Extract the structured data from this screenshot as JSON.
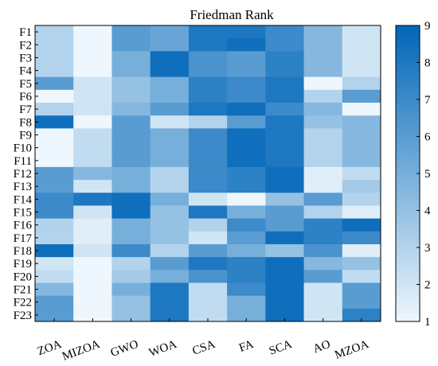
{
  "chart_data": {
    "type": "heatmap",
    "title": "Friedman Rank",
    "xlabel": "",
    "ylabel": "",
    "columns": [
      "ZOA",
      "MIZOA",
      "GWO",
      "WOA",
      "CSA",
      "FA",
      "SCA",
      "AO",
      "MZOA"
    ],
    "rows": [
      "F1",
      "F2",
      "F3",
      "F4",
      "F5",
      "F6",
      "F7",
      "F8",
      "F9",
      "F10",
      "F11",
      "F12",
      "F13",
      "F14",
      "F15",
      "F16",
      "F17",
      "F18",
      "F19",
      "F20",
      "F21",
      "F22",
      "F23"
    ],
    "values": [
      [
        3,
        1,
        6,
        5.5,
        8,
        8,
        7,
        4.5,
        2
      ],
      [
        3,
        1,
        6,
        5.5,
        8,
        8.5,
        7,
        4.5,
        2
      ],
      [
        3,
        1,
        5,
        8.5,
        6.5,
        6,
        7.5,
        4.5,
        2
      ],
      [
        3,
        1,
        5,
        8.5,
        6.5,
        6,
        7.5,
        4.5,
        2
      ],
      [
        6,
        2,
        4,
        5,
        7.5,
        7,
        8,
        1,
        3
      ],
      [
        1,
        2,
        4,
        5,
        7.5,
        7,
        8,
        3,
        6
      ],
      [
        3,
        2,
        4.5,
        6,
        8,
        8.5,
        7,
        4.5,
        1
      ],
      [
        8.5,
        1,
        6,
        2,
        3,
        6,
        8,
        4,
        4.5
      ],
      [
        1,
        2.5,
        6,
        5,
        7,
        8.5,
        8,
        3,
        4.5
      ],
      [
        1,
        2.5,
        6,
        5,
        7,
        8.5,
        8,
        3,
        4.5
      ],
      [
        1,
        2.5,
        6,
        5,
        7,
        8.5,
        8,
        3,
        4.5
      ],
      [
        6,
        4.5,
        5,
        3,
        7,
        7.5,
        8.5,
        1.5,
        2.5
      ],
      [
        6,
        2,
        5,
        3,
        7,
        7.5,
        8.5,
        1.5,
        3.5
      ],
      [
        7,
        8,
        8.5,
        5,
        2,
        1,
        4,
        6,
        3
      ],
      [
        7,
        2,
        8.5,
        4,
        8,
        5,
        6,
        3,
        1.5
      ],
      [
        3,
        1.5,
        5,
        4,
        3,
        7,
        6,
        7.5,
        8.5
      ],
      [
        3,
        1.5,
        5,
        4,
        2,
        6,
        8.5,
        7.5,
        7
      ],
      [
        8.5,
        2,
        7,
        3,
        6,
        5,
        4,
        6.5,
        1.5
      ],
      [
        2,
        1,
        3,
        6,
        8,
        7.5,
        8.5,
        4.5,
        4
      ],
      [
        2.5,
        1,
        3.5,
        5,
        6.5,
        7.5,
        8.5,
        6,
        2.5
      ],
      [
        4.5,
        1,
        5,
        8,
        2.5,
        7,
        8.5,
        2,
        6
      ],
      [
        6,
        1,
        4,
        8,
        2.5,
        5,
        8.5,
        2,
        6
      ],
      [
        6,
        1,
        4,
        8,
        2.5,
        5,
        8.5,
        2,
        7.5
      ]
    ],
    "colorbar": {
      "min": 1,
      "max": 9,
      "ticks": [
        "1",
        "2",
        "3",
        "4",
        "5",
        "6",
        "7",
        "8",
        "9"
      ],
      "colors": [
        "#eef7fd",
        "#0066b8"
      ]
    },
    "grid": false
  }
}
